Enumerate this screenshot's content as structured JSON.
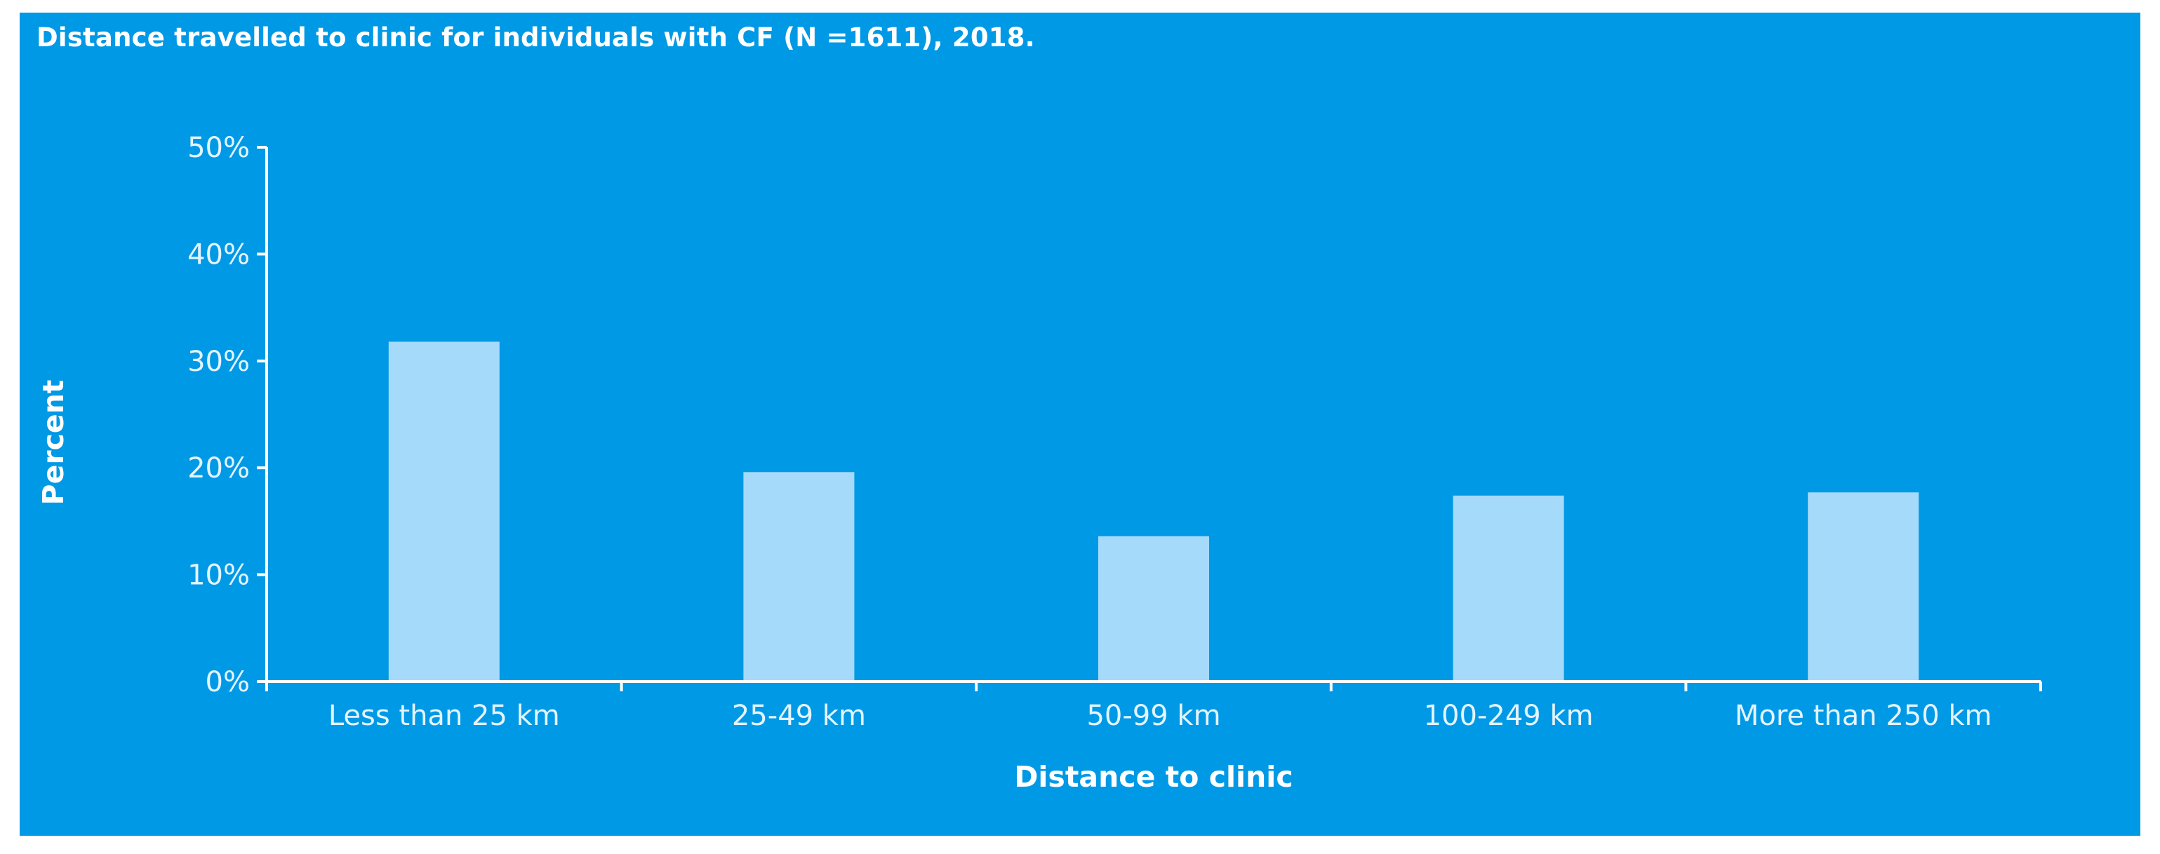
{
  "colors": {
    "background": "#0099e6",
    "bar": "#a6dafb",
    "axis": "#ffffff",
    "text": "#ffffff"
  },
  "chart_data": {
    "type": "bar",
    "title": "Distance travelled to clinic for individuals with CF (N =1611), 2018.",
    "xlabel": "Distance to clinic",
    "ylabel": "Percent",
    "categories": [
      "Less than 25 km",
      "25-49 km",
      "50-99 km",
      "100-249 km",
      "More than 250 km"
    ],
    "values": [
      31.8,
      19.6,
      13.6,
      17.4,
      17.7
    ],
    "ylim": [
      0,
      50
    ],
    "yticks": [
      0,
      10,
      20,
      30,
      40,
      50
    ],
    "ytick_labels": [
      "0%",
      "10%",
      "20%",
      "30%",
      "40%",
      "50%"
    ],
    "grid": false,
    "legend": "none"
  }
}
